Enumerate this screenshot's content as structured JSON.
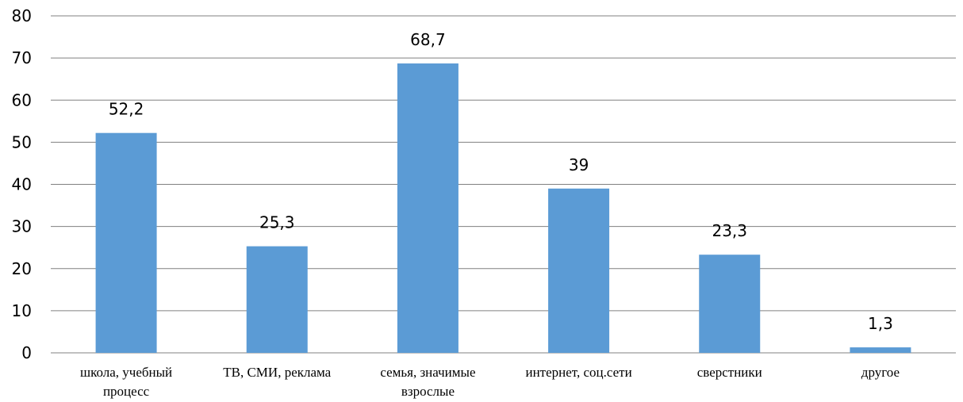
{
  "chart_data": {
    "type": "bar",
    "categories": [
      [
        "школа, учебный",
        "процесс"
      ],
      [
        "ТВ, СМИ, реклама"
      ],
      [
        "семья, значимые",
        "взрослые"
      ],
      [
        "интернет, соц.сети"
      ],
      [
        "сверстники"
      ],
      [
        "другое"
      ]
    ],
    "values": [
      52.2,
      25.3,
      68.7,
      39,
      23.3,
      1.3
    ],
    "value_labels": [
      "52,2",
      "25,3",
      "68,7",
      "39",
      "23,3",
      "1,3"
    ],
    "title": "",
    "xlabel": "",
    "ylabel": "",
    "ylim": [
      0,
      80
    ],
    "yticks": [
      0,
      10,
      20,
      30,
      40,
      50,
      60,
      70,
      80
    ],
    "grid": true,
    "legend": "none",
    "bar_color": "#5b9bd5",
    "grid_color": "#808080"
  }
}
